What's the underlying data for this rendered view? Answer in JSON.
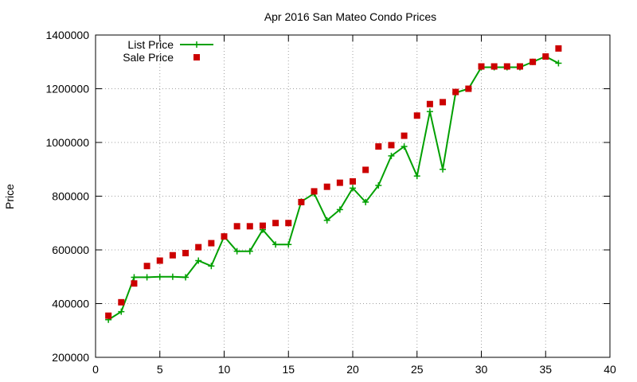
{
  "chart_data": {
    "type": "line",
    "title": "Apr 2016 San Mateo Condo Prices",
    "xlabel": "",
    "ylabel": "Price",
    "xlim": [
      0,
      40
    ],
    "ylim": [
      200000,
      1400000
    ],
    "xticks": [
      0,
      5,
      10,
      15,
      20,
      25,
      30,
      35,
      40
    ],
    "yticks": [
      200000,
      400000,
      600000,
      800000,
      1000000,
      1200000,
      1400000
    ],
    "grid": true,
    "legend_position": "top-left",
    "x": [
      1,
      2,
      3,
      4,
      5,
      6,
      7,
      8,
      9,
      10,
      11,
      12,
      13,
      14,
      15,
      16,
      17,
      18,
      19,
      20,
      21,
      22,
      23,
      24,
      25,
      26,
      27,
      28,
      29,
      30,
      31,
      32,
      33,
      34,
      35,
      36
    ],
    "series": [
      {
        "name": "List Price",
        "style": "line-plus",
        "color": "#00a000",
        "values": [
          340000,
          370000,
          498000,
          498000,
          500000,
          500000,
          498000,
          560000,
          540000,
          650000,
          595000,
          595000,
          675000,
          620000,
          620000,
          780000,
          810000,
          710000,
          750000,
          830000,
          778000,
          840000,
          950000,
          985000,
          875000,
          1115000,
          900000,
          1185000,
          1200000,
          1280000,
          1280000,
          1280000,
          1280000,
          1300000,
          1320000,
          1295000
        ]
      },
      {
        "name": "Sale Price",
        "style": "square-markers",
        "color": "#cc0000",
        "values": [
          355000,
          405000,
          475000,
          540000,
          560000,
          580000,
          588000,
          610000,
          625000,
          650000,
          688000,
          688000,
          690000,
          700000,
          700000,
          778000,
          818000,
          835000,
          850000,
          855000,
          898000,
          985000,
          990000,
          1025000,
          1100000,
          1143000,
          1150000,
          1188000,
          1200000,
          1283000,
          1283000,
          1283000,
          1283000,
          1300000,
          1320000,
          1350000
        ]
      }
    ]
  }
}
